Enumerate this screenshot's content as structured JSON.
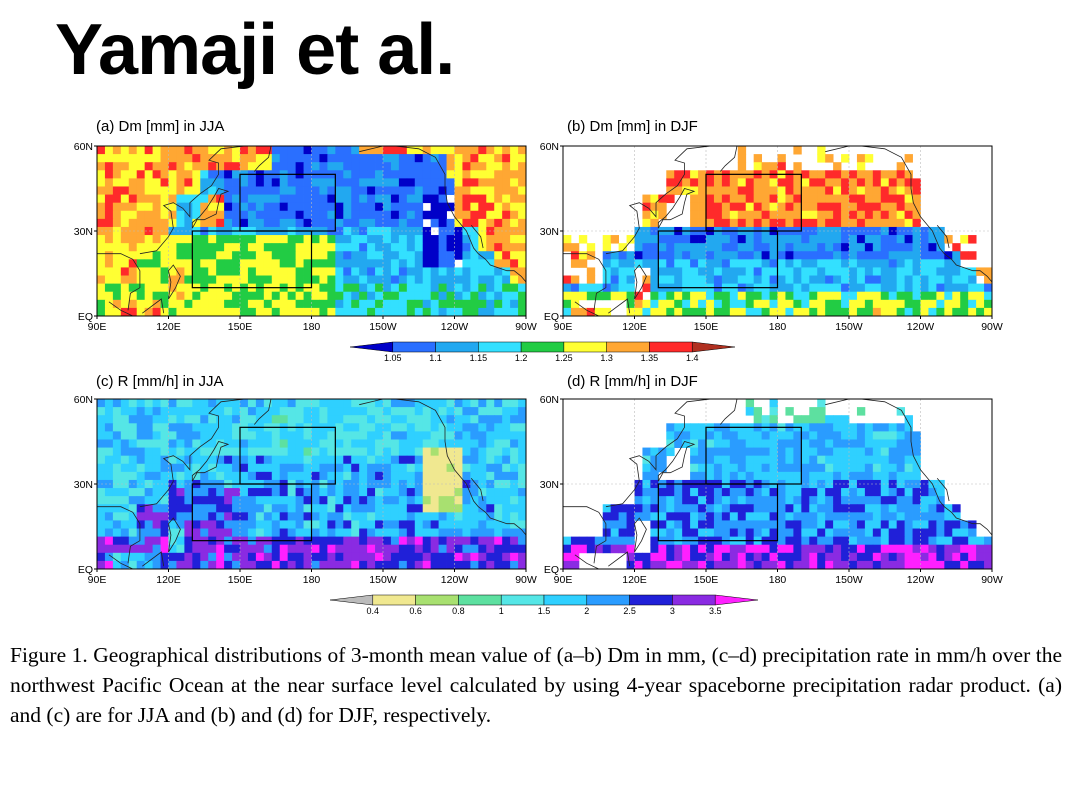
{
  "title": "Yamaji et al.",
  "panels": [
    {
      "title": "(a) Dm [mm] in JJA",
      "season": "JJA",
      "variable": "Dm"
    },
    {
      "title": "(b) Dm [mm] in DJF",
      "season": "DJF",
      "variable": "Dm"
    },
    {
      "title": "(c) R [mm/h] in JJA",
      "season": "JJA",
      "variable": "R"
    },
    {
      "title": "(d) R [mm/h] in DJF",
      "season": "DJF",
      "variable": "R"
    }
  ],
  "axes": {
    "x_ticks": [
      "90E",
      "120E",
      "150E",
      "180",
      "150W",
      "120W",
      "90W"
    ],
    "y_ticks": [
      "60N",
      "30N",
      "EQ"
    ]
  },
  "colorbar_dm": {
    "labels": [
      "1.05",
      "1.1",
      "1.15",
      "1.2",
      "1.25",
      "1.3",
      "1.35",
      "1.4"
    ],
    "colors": [
      "#0000c8",
      "#2a6fff",
      "#22a8f0",
      "#33e0ff",
      "#22cc44",
      "#ffff33",
      "#ffa733",
      "#ff2a2a",
      "#b03020"
    ]
  },
  "colorbar_r": {
    "labels": [
      "0.4",
      "0.6",
      "0.8",
      "1",
      "1.5",
      "2",
      "2.5",
      "3",
      "3.5"
    ],
    "colors": [
      "#bbbbbb",
      "#f0e890",
      "#a8e070",
      "#5de0a0",
      "#55e6e6",
      "#2fd0ff",
      "#2a9cff",
      "#2020d8",
      "#8a2be2",
      "#ff20ff"
    ]
  },
  "caption": "Figure 1. Geographical distributions of 3-month mean value of (a–b) Dm in mm, (c–d) precipitation rate in mm/h over the northwest Pacific Ocean at the near surface level calculated by using 4-year spaceborne precipitation radar product. (a) and (c) are for JJA and (b) and (d) for DJF, respectively."
}
